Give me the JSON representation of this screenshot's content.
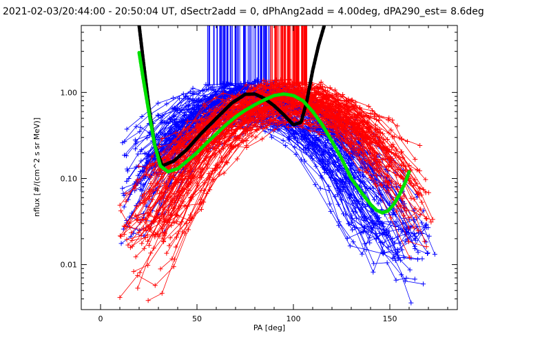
{
  "chart_data": {
    "type": "line",
    "title": "2021-02-03/20:44:00 - 20:50:04 UT, dSectr2add = 0, dPhAng2add = 4.00deg, dPA290_est=   8.6deg",
    "xlabel": "PA [deg]",
    "ylabel": "nflux [#/(cm^2 s sr MeV)]",
    "xlim": [
      -10,
      185
    ],
    "ylim": [
      0.003,
      6
    ],
    "yscale": "log",
    "grid": false,
    "x_ticks": [
      {
        "value": 0,
        "label": "0"
      },
      {
        "value": 50,
        "label": "50"
      },
      {
        "value": 100,
        "label": "100"
      },
      {
        "value": 150,
        "label": "150"
      }
    ],
    "y_ticks": [
      {
        "value": 0.01,
        "label": "0.01"
      },
      {
        "value": 0.1,
        "label": "0.10"
      },
      {
        "value": 1.0,
        "label": "1.00"
      }
    ],
    "series": [
      {
        "role": "fit-black",
        "color": "#000000",
        "x": [
          20,
          22,
          25,
          28,
          32,
          38,
          45,
          52,
          60,
          68,
          75,
          80,
          85,
          90,
          95,
          100,
          104,
          107,
          110,
          113,
          116
        ],
        "y": [
          6.0,
          2.5,
          0.7,
          0.25,
          0.14,
          0.16,
          0.22,
          0.33,
          0.5,
          0.75,
          0.95,
          0.96,
          0.85,
          0.7,
          0.55,
          0.42,
          0.45,
          0.8,
          1.8,
          3.5,
          6.0
        ]
      },
      {
        "role": "fit-green",
        "color": "#00e000",
        "x": [
          20,
          22,
          25,
          28,
          31,
          35,
          40,
          45,
          50,
          55,
          60,
          65,
          70,
          75,
          80,
          85,
          90,
          95,
          100,
          105,
          110,
          115,
          120,
          125,
          130,
          135,
          140,
          143,
          146,
          149,
          152,
          155,
          158,
          160
        ],
        "y": [
          2.9,
          1.5,
          0.6,
          0.25,
          0.14,
          0.12,
          0.13,
          0.16,
          0.2,
          0.26,
          0.33,
          0.42,
          0.52,
          0.62,
          0.72,
          0.82,
          0.92,
          0.96,
          0.92,
          0.8,
          0.6,
          0.42,
          0.27,
          0.17,
          0.1,
          0.07,
          0.05,
          0.043,
          0.04,
          0.042,
          0.05,
          0.065,
          0.09,
          0.12
        ]
      }
    ],
    "scatter_groups": [
      {
        "role": "blue-curves",
        "color": "#0000ff",
        "peak_x_range": [
          65,
          88
        ],
        "count": 95
      },
      {
        "role": "red-curves",
        "color": "#ff0000",
        "peak_x_range": [
          88,
          110
        ],
        "count": 95
      }
    ]
  }
}
